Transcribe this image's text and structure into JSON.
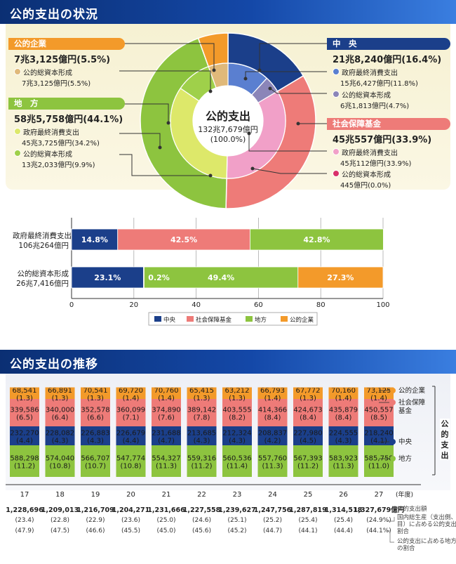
{
  "section1": {
    "title": "公的支出の状況",
    "center": {
      "title": "公的支出",
      "amount": "132兆7,679億円",
      "pct": "(100.0%)"
    },
    "corp": {
      "tag": "公的企業",
      "total": "7兆3,125億円(5.5%)",
      "item_label": "公的総資本形成",
      "item_val": "7兆3,125億円(5.5%)"
    },
    "local": {
      "tag": "地　方",
      "total": "58兆5,758億円(44.1%)",
      "item1_label": "政府最終消費支出",
      "item1_val": "45兆3,725億円(34.2%)",
      "item2_label": "公的総資本形成",
      "item2_val": "13兆2,033億円(9.9%)"
    },
    "central": {
      "tag": "中　央",
      "total": "21兆8,240億円(16.4%)",
      "item1_label": "政府最終消費支出",
      "item1_val": "15兆6,427億円(11.8%)",
      "item2_label": "公的総資本形成",
      "item2_val": "6兆1,813億円(4.7%)"
    },
    "social": {
      "tag": "社会保障基金",
      "total": "45兆557億円(33.9%)",
      "item1_label": "政府最終消費支出",
      "item1_val": "45兆112億円(33.9%)",
      "item2_label": "公的総資本形成",
      "item2_val": "445億円(0.0%)"
    },
    "bars": {
      "row1_label1": "政府最終消費支出",
      "row1_label2": "106兆264億円",
      "row2_label1": "公的総資本形成",
      "row2_label2": "26兆7,416億円",
      "ticks": [
        "0",
        "20",
        "40",
        "60",
        "80",
        "100"
      ],
      "legend": [
        "中央",
        "社会保障基金",
        "地方",
        "公的企業"
      ]
    }
  },
  "section2": {
    "title": "公的支出の推移",
    "years": [
      "17",
      "18",
      "19",
      "20",
      "21",
      "22",
      "23",
      "24",
      "25",
      "26",
      "27"
    ],
    "year_unit": "(年度)",
    "unit": "億円",
    "right_legend": [
      "公的企業",
      "社会保障\n基金",
      "中央",
      "地方"
    ],
    "bracket_label": "公的支出",
    "totals": [
      "1,228,696",
      "1,209,013",
      "1,216,709",
      "1,204,271",
      "1,231,666",
      "1,227,558",
      "1,239,627",
      "1,247,756",
      "1,287,819",
      "1,314,518",
      "1,327,679"
    ],
    "gdp_pct": [
      "(23.4)",
      "(22.8)",
      "(22.9)",
      "(23.6)",
      "(25.0)",
      "(24.6)",
      "(25.1)",
      "(25.2)",
      "(25.4)",
      "(25.4)",
      "(24.9%)"
    ],
    "local_pct": [
      "(47.9)",
      "(47.5)",
      "(46.6)",
      "(45.5)",
      "(45.0)",
      "(45.6)",
      "(45.2)",
      "(44.7)",
      "(44.1)",
      "(44.4)",
      "(44.1%)"
    ],
    "notes": {
      "n1": "公的支出額",
      "n2": "国内総生産（支出側、名目）に占める公的支出の割合",
      "n3": "公的支出に占める地方の割合"
    }
  },
  "colors": {
    "central": "#1b3f8a",
    "social": "#ee7b78",
    "local": "#8dc43f",
    "corp": "#f39a2a",
    "header": "#1448a8"
  },
  "chart_data": [
    {
      "type": "pie",
      "title": "公的支出の状況",
      "unit": "億円",
      "outer": [
        {
          "name": "中央",
          "value": 218240,
          "pct": 16.4
        },
        {
          "name": "社会保障基金",
          "value": 450557,
          "pct": 33.9
        },
        {
          "name": "地方",
          "value": 585758,
          "pct": 44.1
        },
        {
          "name": "公的企業",
          "value": 73125,
          "pct": 5.5
        }
      ],
      "inner": [
        {
          "name": "中央 政府最終消費支出",
          "value": 156427,
          "pct": 11.8
        },
        {
          "name": "中央 公的総資本形成",
          "value": 61813,
          "pct": 4.7
        },
        {
          "name": "社会保障基金 政府最終消費支出",
          "value": 450112,
          "pct": 33.9
        },
        {
          "name": "社会保障基金 公的総資本形成",
          "value": 445,
          "pct": 0.0
        },
        {
          "name": "地方 政府最終消費支出",
          "value": 453725,
          "pct": 34.2
        },
        {
          "name": "地方 公的総資本形成",
          "value": 132033,
          "pct": 9.9
        },
        {
          "name": "公的企業 公的総資本形成",
          "value": 73125,
          "pct": 5.5
        }
      ]
    },
    {
      "type": "bar",
      "stacked": true,
      "orientation": "horizontal",
      "categories": [
        "政府最終消費支出",
        "公的総資本形成"
      ],
      "xlim": [
        0,
        100
      ],
      "series": [
        {
          "name": "中央",
          "values": [
            14.8,
            23.1
          ],
          "labels": [
            "14.8%",
            "23.1%"
          ]
        },
        {
          "name": "社会保障基金",
          "values": [
            42.5,
            0.2
          ],
          "labels": [
            "42.5%",
            "0.2%"
          ]
        },
        {
          "name": "地方",
          "values": [
            42.8,
            49.4
          ],
          "labels": [
            "42.8%",
            "49.4%"
          ]
        },
        {
          "name": "公的企業",
          "values": [
            0,
            27.3
          ],
          "labels": [
            "",
            "27.3%"
          ]
        }
      ]
    },
    {
      "type": "bar",
      "stacked": true,
      "title": "公的支出の推移",
      "categories": [
        "17",
        "18",
        "19",
        "20",
        "21",
        "22",
        "23",
        "24",
        "25",
        "26",
        "27"
      ],
      "series": [
        {
          "name": "地方",
          "values": [
            588298,
            574040,
            566707,
            547774,
            554327,
            559316,
            560536,
            557760,
            567393,
            583923,
            585758
          ],
          "shares": [
            "(11.2)",
            "(10.8)",
            "(10.7)",
            "(10.8)",
            "(11.3)",
            "(11.2)",
            "(11.4)",
            "(11.3)",
            "(11.2)",
            "(11.3)",
            "(11.0)"
          ]
        },
        {
          "name": "中央",
          "values": [
            232270,
            228082,
            226883,
            226679,
            231688,
            213685,
            212324,
            208837,
            227980,
            224555,
            218240
          ],
          "shares": [
            "(4.4)",
            "(4.3)",
            "(4.3)",
            "(4.4)",
            "(4.7)",
            "(4.3)",
            "(4.3)",
            "(4.2)",
            "(4.5)",
            "(4.3)",
            "(4.1)"
          ]
        },
        {
          "name": "社会保障基金",
          "values": [
            339586,
            340000,
            352578,
            360099,
            374890,
            389142,
            403555,
            414366,
            424673,
            435879,
            450557
          ],
          "shares": [
            "(6.5)",
            "(6.4)",
            "(6.6)",
            "(7.1)",
            "(7.6)",
            "(7.8)",
            "(8.2)",
            "(8.4)",
            "(8.4)",
            "(8.4)",
            "(8.5)"
          ]
        },
        {
          "name": "公的企業",
          "values": [
            68541,
            66891,
            70541,
            69720,
            70760,
            65415,
            63212,
            66793,
            67772,
            70160,
            73125
          ],
          "shares": [
            "(1.3)",
            "(1.3)",
            "(1.3)",
            "(1.4)",
            "(1.4)",
            "(1.3)",
            "(1.3)",
            "(1.4)",
            "(1.3)",
            "(1.4)",
            "(1.4)"
          ]
        }
      ]
    }
  ]
}
